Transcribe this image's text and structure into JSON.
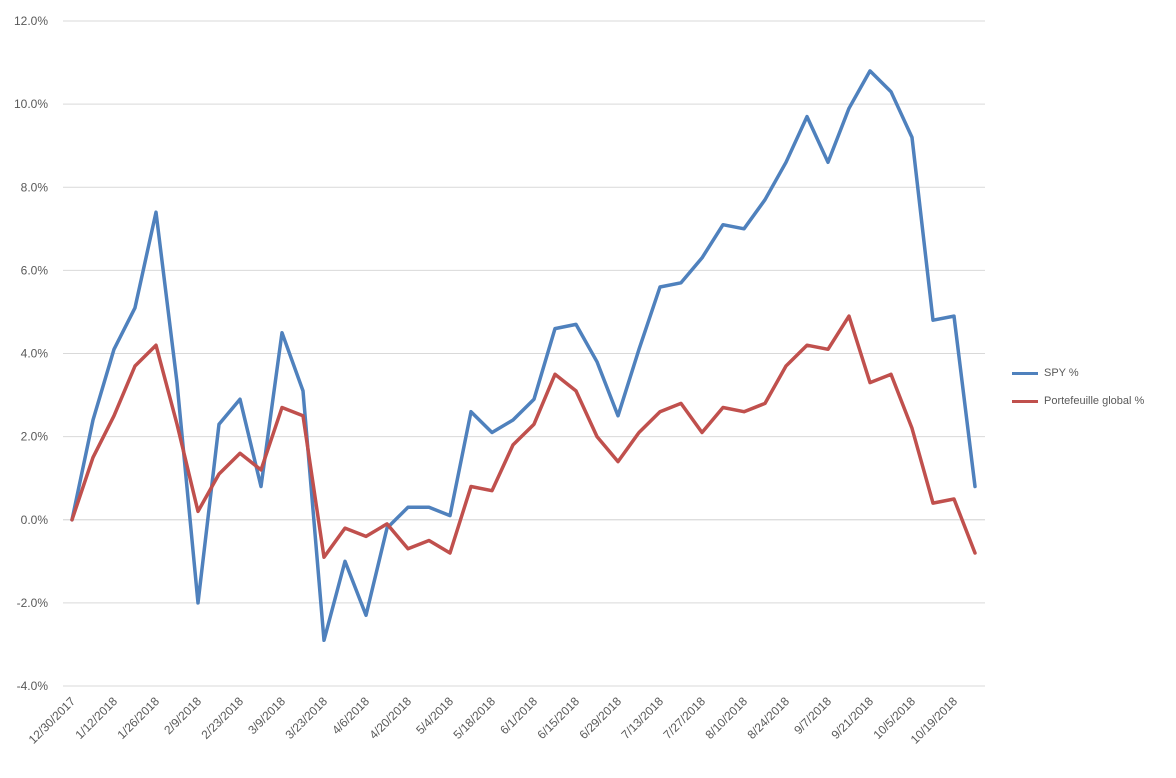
{
  "chart_data": {
    "type": "line",
    "title": "",
    "xlabel": "",
    "ylabel": "",
    "ylim": [
      -4,
      12
    ],
    "y_ticks": [
      "12.0%",
      "10.0%",
      "8.0%",
      "6.0%",
      "4.0%",
      "2.0%",
      "0.0%",
      "-2.0%",
      "-4.0%"
    ],
    "y_tick_values": [
      12,
      10,
      8,
      6,
      4,
      2,
      0,
      -2,
      -4
    ],
    "grid": "horizontal",
    "legend_position": "right",
    "x": [
      "12/30/2017",
      "1/5/2018",
      "1/12/2018",
      "1/19/2018",
      "1/26/2018",
      "2/2/2018",
      "2/9/2018",
      "2/16/2018",
      "2/23/2018",
      "3/2/2018",
      "3/9/2018",
      "3/16/2018",
      "3/23/2018",
      "3/30/2018",
      "4/6/2018",
      "4/13/2018",
      "4/20/2018",
      "4/27/2018",
      "5/4/2018",
      "5/11/2018",
      "5/18/2018",
      "5/25/2018",
      "6/1/2018",
      "6/8/2018",
      "6/15/2018",
      "6/22/2018",
      "6/29/2018",
      "7/6/2018",
      "7/13/2018",
      "7/20/2018",
      "7/27/2018",
      "8/3/2018",
      "8/10/2018",
      "8/17/2018",
      "8/24/2018",
      "8/31/2018",
      "9/7/2018",
      "9/14/2018",
      "9/21/2018",
      "9/28/2018",
      "10/5/2018",
      "10/12/2018",
      "10/19/2018",
      "10/26/2018"
    ],
    "x_tick_labels": [
      "12/30/2017",
      "1/12/2018",
      "1/26/2018",
      "2/9/2018",
      "2/23/2018",
      "3/9/2018",
      "3/23/2018",
      "4/6/2018",
      "4/20/2018",
      "5/4/2018",
      "5/18/2018",
      "6/1/2018",
      "6/15/2018",
      "6/29/2018",
      "7/13/2018",
      "7/27/2018",
      "8/10/2018",
      "8/24/2018",
      "9/7/2018",
      "9/21/2018",
      "10/5/2018",
      "10/19/2018"
    ],
    "series": [
      {
        "name": "SPY %",
        "color": "#4f81bd",
        "values": [
          0.0,
          2.4,
          4.1,
          5.1,
          7.4,
          3.3,
          -2.0,
          2.3,
          2.9,
          0.8,
          4.5,
          3.1,
          -2.9,
          -1.0,
          -2.3,
          -0.2,
          0.3,
          0.3,
          0.1,
          2.6,
          2.1,
          2.4,
          2.9,
          4.6,
          4.7,
          3.8,
          2.5,
          4.1,
          5.6,
          5.7,
          6.3,
          7.1,
          7.0,
          7.7,
          8.6,
          9.7,
          8.6,
          9.9,
          10.8,
          10.3,
          9.2,
          4.8,
          4.9,
          0.8
        ]
      },
      {
        "name": "Portefeuille global %",
        "color": "#c0504d",
        "values": [
          0.0,
          1.5,
          2.5,
          3.7,
          4.2,
          2.3,
          0.2,
          1.1,
          1.6,
          1.2,
          2.7,
          2.5,
          -0.9,
          -0.2,
          -0.4,
          -0.1,
          -0.7,
          -0.5,
          -0.8,
          0.8,
          0.7,
          1.8,
          2.3,
          3.5,
          3.1,
          2.0,
          1.4,
          2.1,
          2.6,
          2.8,
          2.1,
          2.7,
          2.6,
          2.8,
          3.7,
          4.2,
          4.1,
          4.9,
          3.3,
          3.5,
          2.2,
          0.4,
          0.5,
          -0.8
        ]
      }
    ]
  }
}
